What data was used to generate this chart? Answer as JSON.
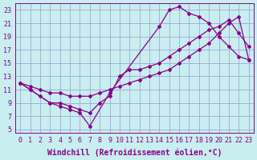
{
  "xlabel": "Windchill (Refroidissement éolien,°C)",
  "bg_color": "#c8eef0",
  "grid_color": "#9999cc",
  "line_color": "#880088",
  "xlim": [
    -0.5,
    23.5
  ],
  "ylim": [
    4.5,
    24
  ],
  "xticks": [
    0,
    1,
    2,
    3,
    4,
    5,
    6,
    7,
    8,
    9,
    10,
    11,
    12,
    13,
    14,
    15,
    16,
    17,
    18,
    19,
    20,
    21,
    22,
    23
  ],
  "yticks": [
    5,
    7,
    9,
    11,
    13,
    15,
    17,
    19,
    21,
    23
  ],
  "curve1_x": [
    0,
    1,
    3,
    4,
    5,
    6,
    7,
    9,
    14,
    15,
    16,
    17,
    18,
    19,
    20,
    21,
    22,
    23
  ],
  "curve1_y": [
    12,
    11,
    9,
    8.5,
    8,
    7.5,
    5.5,
    10.5,
    20.5,
    23,
    23.5,
    22.5,
    22,
    21,
    19,
    17.5,
    16,
    15.5
  ],
  "curve2_x": [
    0,
    1,
    2,
    3,
    4,
    5,
    6,
    7,
    8,
    9,
    10,
    11,
    12,
    13,
    14,
    15,
    16,
    17,
    18,
    19,
    20,
    21,
    22,
    23
  ],
  "curve2_y": [
    12,
    11.5,
    11,
    10.5,
    10.5,
    10,
    10,
    10,
    10.5,
    11,
    11.5,
    12,
    12.5,
    13,
    13.5,
    14,
    15,
    16,
    17,
    18,
    19.5,
    21,
    22,
    15.5
  ],
  "curve3_x": [
    0,
    1,
    2,
    3,
    4,
    5,
    6,
    7,
    8,
    9,
    10,
    11,
    12,
    13,
    14,
    15,
    16,
    17,
    18,
    19,
    20,
    21,
    22,
    23
  ],
  "curve3_y": [
    12,
    11,
    10,
    9,
    9,
    8.5,
    8,
    7.5,
    9,
    10,
    13,
    14,
    14,
    14.5,
    15,
    16,
    17,
    18,
    19,
    20,
    20.5,
    21.5,
    19.5,
    17.5
  ],
  "marker_style": "D",
  "marker_size": 2,
  "line_width": 0.9,
  "tick_fontsize": 6,
  "label_fontsize": 7
}
